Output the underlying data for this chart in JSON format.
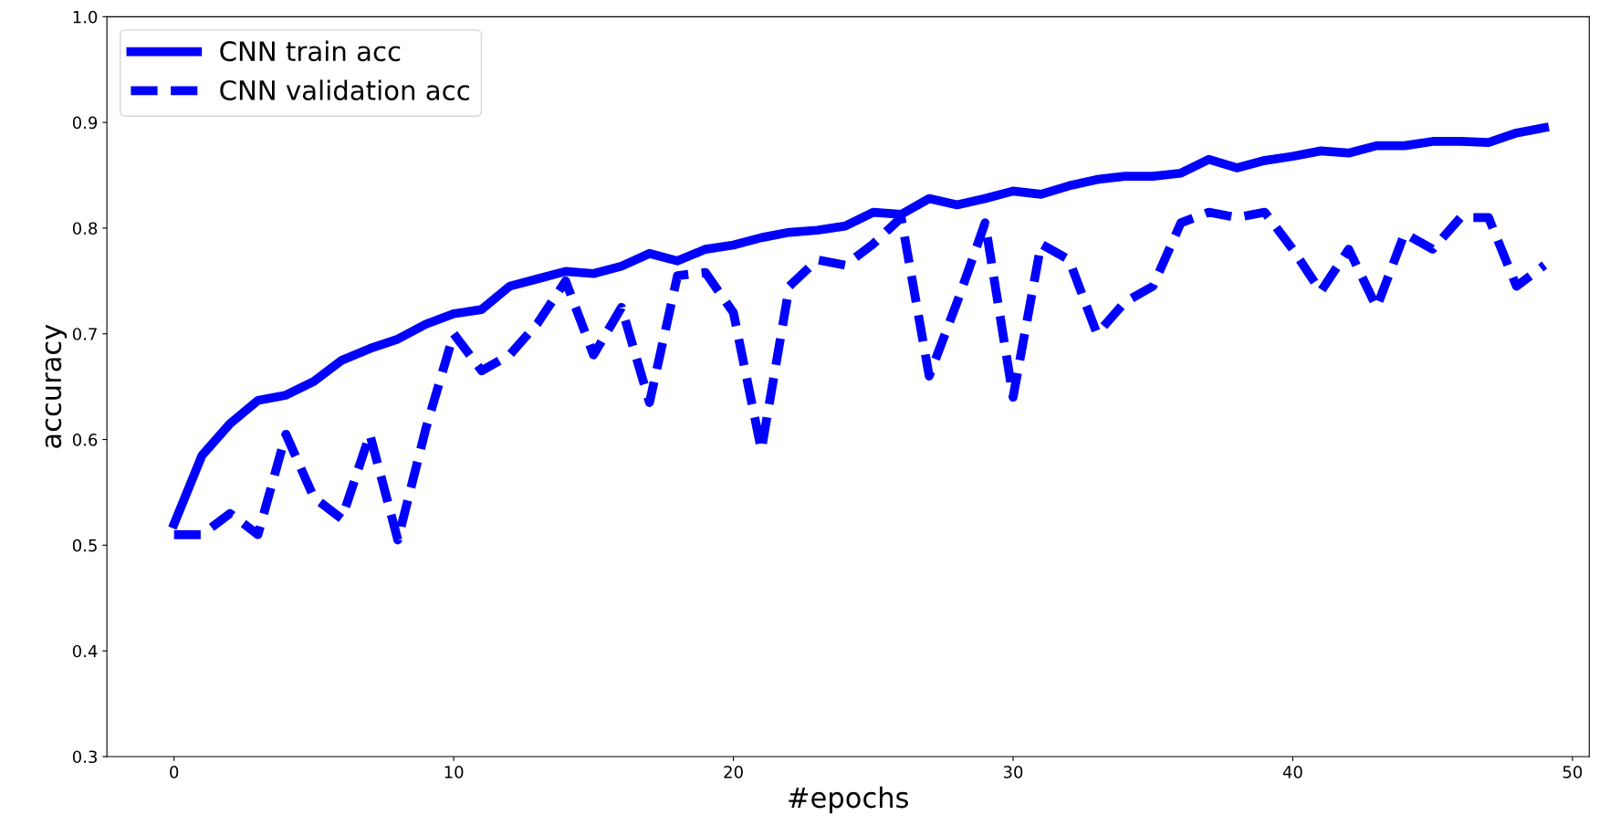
{
  "chart_data": {
    "type": "line",
    "xlabel": "#epochs",
    "ylabel": "accuracy",
    "x": [
      0,
      1,
      2,
      3,
      4,
      5,
      6,
      7,
      8,
      9,
      10,
      11,
      12,
      13,
      14,
      15,
      16,
      17,
      18,
      19,
      20,
      21,
      22,
      23,
      24,
      25,
      26,
      27,
      28,
      29,
      30,
      31,
      32,
      33,
      34,
      35,
      36,
      37,
      38,
      39,
      40,
      41,
      42,
      43,
      44,
      45,
      46,
      47,
      48,
      49
    ],
    "series": [
      {
        "name": "CNN train acc",
        "color": "#0000ff",
        "line_style": "solid",
        "values": [
          0.52,
          0.585,
          0.615,
          0.637,
          0.642,
          0.655,
          0.675,
          0.686,
          0.695,
          0.709,
          0.719,
          0.723,
          0.745,
          0.752,
          0.759,
          0.757,
          0.764,
          0.776,
          0.769,
          0.78,
          0.784,
          0.791,
          0.796,
          0.798,
          0.802,
          0.815,
          0.813,
          0.828,
          0.822,
          0.828,
          0.835,
          0.832,
          0.84,
          0.846,
          0.849,
          0.849,
          0.852,
          0.865,
          0.857,
          0.864,
          0.868,
          0.873,
          0.871,
          0.878,
          0.878,
          0.882,
          0.882,
          0.881,
          0.89,
          0.895
        ]
      },
      {
        "name": "CNN validation acc",
        "color": "#0000ff",
        "line_style": "dashed",
        "values": [
          0.51,
          0.51,
          0.53,
          0.51,
          0.605,
          0.545,
          0.525,
          0.605,
          0.505,
          0.61,
          0.7,
          0.665,
          0.68,
          0.71,
          0.75,
          0.68,
          0.725,
          0.635,
          0.755,
          0.758,
          0.72,
          0.59,
          0.745,
          0.77,
          0.765,
          0.785,
          0.81,
          0.66,
          0.73,
          0.805,
          0.64,
          0.785,
          0.77,
          0.7,
          0.73,
          0.745,
          0.805,
          0.815,
          0.81,
          0.815,
          0.78,
          0.74,
          0.78,
          0.725,
          0.795,
          0.78,
          0.81,
          0.81,
          0.745,
          0.765
        ]
      }
    ],
    "xlim": [
      -2.4,
      50.6
    ],
    "xticks": [
      0,
      10,
      20,
      30,
      40,
      50
    ],
    "ylim": [
      0.3,
      1.0
    ],
    "yticks": [
      {
        "value": 0.3,
        "label": "0.3"
      },
      {
        "value": 0.4,
        "label": "0.4"
      },
      {
        "value": 0.5,
        "label": "0.5"
      },
      {
        "value": 0.6,
        "label": "0.6"
      },
      {
        "value": 0.7,
        "label": "0.7"
      },
      {
        "value": 0.8,
        "label": "0.8"
      },
      {
        "value": 0.9,
        "label": "0.9"
      },
      {
        "value": 1.0,
        "label": "1.0"
      }
    ],
    "legend": "top left",
    "grid": false
  }
}
